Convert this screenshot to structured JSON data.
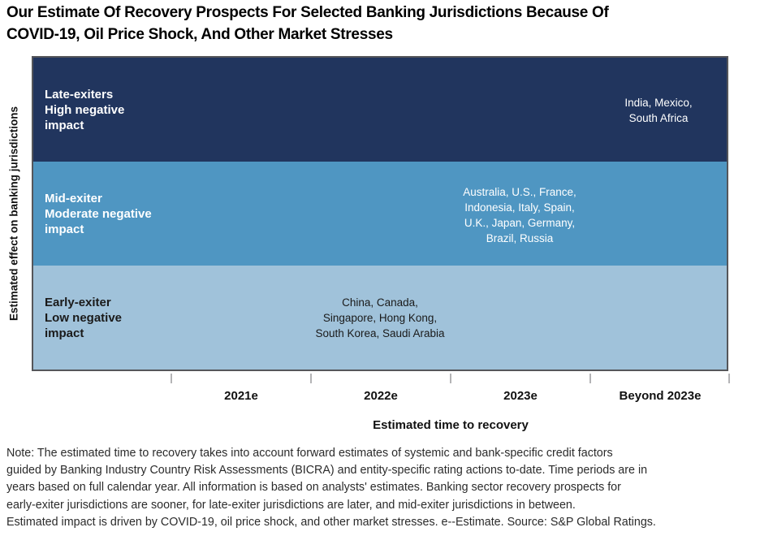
{
  "chart_data": {
    "type": "heatmap",
    "subtype": "categorical-band-chart",
    "title": "Our Estimate Of Recovery Prospects For Selected Banking Jurisdictions Because Of\nCOVID-19, Oil Price Shock, And Other Market Stresses",
    "xlabel": "Estimated time to recovery",
    "ylabel": "Estimated effect on banking jurisdictions",
    "x_tick_labels": [
      "2021e",
      "2022e",
      "2023e",
      "Beyond 2023e"
    ],
    "legend": "none",
    "grid": false,
    "bands": [
      {
        "id": "late-exiters",
        "label": "Late-exiters\nHigh negative\nimpact",
        "exit_category": "Late-exiters",
        "impact": "High negative impact",
        "countries": [
          "India",
          "Mexico",
          "South Africa"
        ],
        "countries_display": "India, Mexico,\nSouth Africa",
        "time_to_recovery": "Beyond 2023e",
        "color": "#21355E",
        "text_color": "#ffffff"
      },
      {
        "id": "mid-exiter",
        "label": "Mid-exiter\nModerate negative\nimpact",
        "exit_category": "Mid-exiter",
        "impact": "Moderate negative impact",
        "countries": [
          "Australia",
          "U.S.",
          "France",
          "Indonesia",
          "Italy",
          "Spain",
          "U.K.",
          "Japan",
          "Germany",
          "Brazil",
          "Russia"
        ],
        "countries_display": "Australia, U.S., France,\nIndonesia, Italy, Spain,\nU.K., Japan, Germany,\nBrazil, Russia",
        "time_to_recovery": "2023e",
        "color": "#4F96C2",
        "text_color": "#ffffff"
      },
      {
        "id": "early-exiter",
        "label": "Early-exiter\nLow negative\nimpact",
        "exit_category": "Early-exiter",
        "impact": "Low negative impact",
        "countries": [
          "China",
          "Canada",
          "Singapore",
          "Hong Kong",
          "South Korea",
          "Saudi Arabia"
        ],
        "countries_display": "China, Canada,\nSingapore, Hong Kong,\nSouth Korea, Saudi Arabia",
        "time_to_recovery": "2022e",
        "color": "#A0C2DA",
        "text_color": "#1a1a1a"
      }
    ],
    "colors": {
      "late_exiters_band": "#21355E",
      "mid_exiter_band": "#4F96C2",
      "early_exiter_band": "#A0C2DA",
      "plot_border": "#55565a",
      "tick": "#b4b4b6"
    }
  },
  "note": "Note: The estimated time to recovery takes into account forward estimates of systemic and bank-specific credit factors\nguided by Banking Industry Country Risk Assessments (BICRA) and entity-specific rating actions to-date. Time periods are in\nyears based on full calendar year. All information is based on analysts' estimates. Banking sector recovery prospects for\nearly-exiter jurisdictions are sooner, for late-exiter jurisdictions are later, and mid-exiter jurisdictions in between.\nEstimated impact is driven by COVID-19, oil price shock, and other market stresses. e--Estimate. Source: S&P Global Ratings."
}
